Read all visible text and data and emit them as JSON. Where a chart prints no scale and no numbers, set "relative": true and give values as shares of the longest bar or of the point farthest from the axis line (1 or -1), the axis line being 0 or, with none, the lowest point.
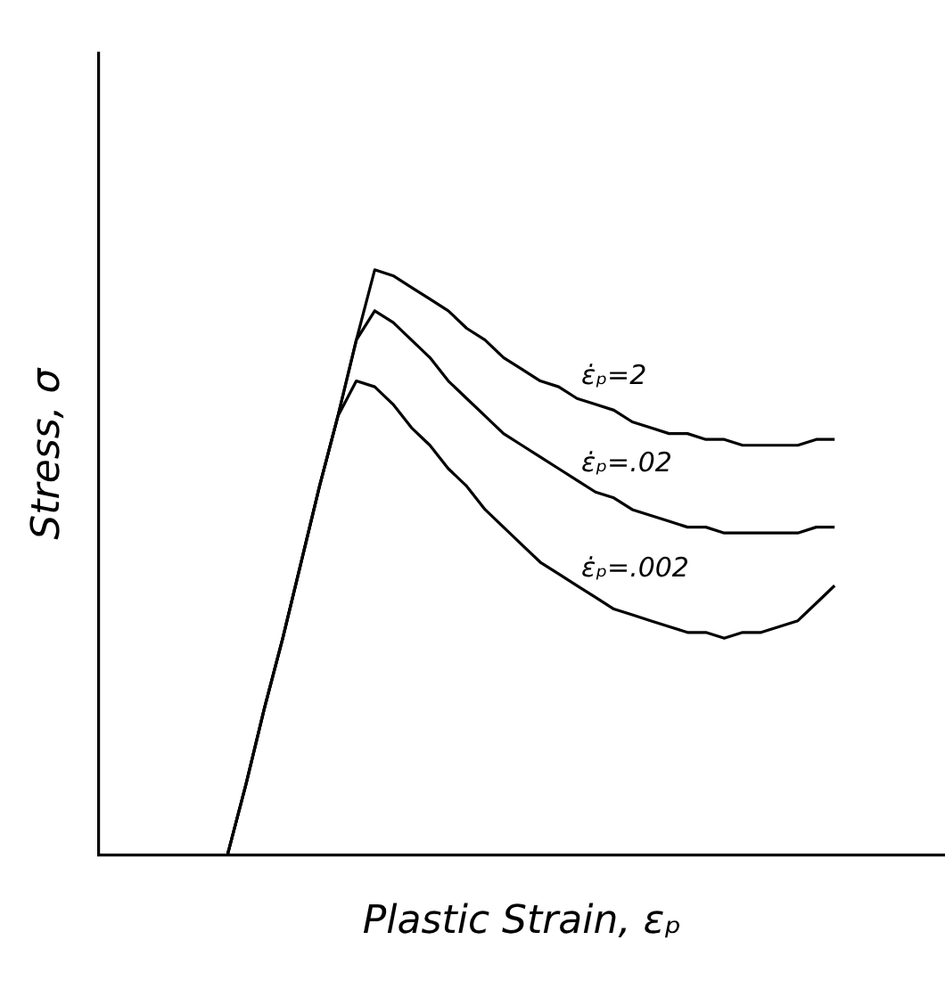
{
  "chart_data": {
    "type": "line",
    "relative": true,
    "xlabel": "Plastic Strain, εₚ",
    "ylabel": "Stress, σ",
    "legend": false,
    "grid": false,
    "marker": "none",
    "line_style": "solid",
    "categories": [
      null,
      null,
      null,
      null,
      null,
      null,
      null,
      null,
      null,
      null,
      null,
      null,
      null,
      null,
      null,
      null,
      null,
      null,
      null,
      null,
      null,
      null,
      null,
      null,
      null,
      null,
      null,
      null,
      null,
      null,
      null,
      null,
      null,
      null,
      null,
      null,
      null,
      null,
      null,
      null,
      null,
      null,
      null,
      null,
      null,
      null,
      null
    ],
    "series": [
      {
        "name": "ε̇ₚ=2",
        "color": "#000000",
        "values": [
          null,
          null,
          null,
          null,
          null,
          null,
          null,
          0,
          0.12,
          0.25,
          0.37,
          0.5,
          0.63,
          0.75,
          0.88,
          1,
          0.99,
          0.97,
          0.95,
          0.93,
          0.9,
          0.88,
          0.85,
          0.83,
          0.81,
          0.8,
          0.78,
          0.77,
          0.76,
          0.74,
          0.73,
          0.72,
          0.72,
          0.71,
          0.71,
          0.7,
          0.7,
          0.7,
          0.7,
          0.71,
          0.71,
          null,
          null,
          null,
          null,
          null,
          null
        ]
      },
      {
        "name": "ε̇ₚ=.02",
        "color": "#000000",
        "values": [
          null,
          null,
          null,
          null,
          null,
          null,
          null,
          0,
          0.12,
          0.25,
          0.37,
          0.5,
          0.63,
          0.75,
          0.88,
          0.93,
          0.91,
          0.88,
          0.85,
          0.81,
          0.78,
          0.75,
          0.72,
          0.7,
          0.68,
          0.66,
          0.64,
          0.62,
          0.61,
          0.59,
          0.58,
          0.57,
          0.56,
          0.56,
          0.55,
          0.55,
          0.55,
          0.55,
          0.55,
          0.56,
          0.56,
          null,
          null,
          null,
          null,
          null,
          null
        ]
      },
      {
        "name": "ε̇ₚ=.002",
        "color": "#000000",
        "values": [
          null,
          null,
          null,
          null,
          null,
          null,
          null,
          0,
          0.12,
          0.25,
          0.37,
          0.5,
          0.63,
          0.75,
          0.81,
          0.8,
          0.77,
          0.73,
          0.7,
          0.66,
          0.63,
          0.59,
          0.56,
          0.53,
          0.5,
          0.48,
          0.46,
          0.44,
          0.42,
          0.41,
          0.4,
          0.39,
          0.38,
          0.38,
          0.37,
          0.38,
          0.38,
          0.39,
          0.4,
          0.43,
          0.46,
          null,
          null,
          null,
          null,
          null,
          null
        ]
      }
    ]
  }
}
